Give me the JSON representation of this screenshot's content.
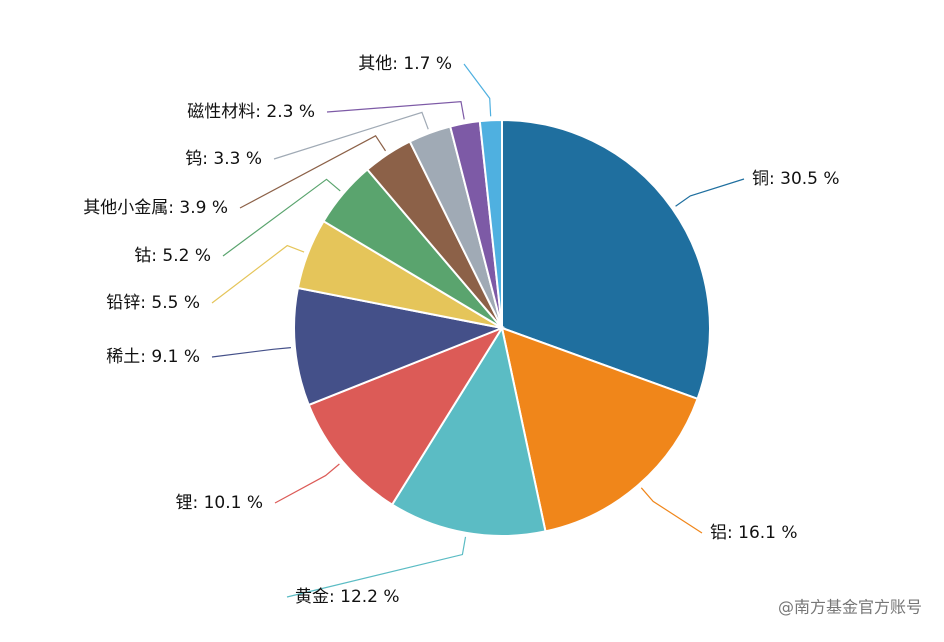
{
  "chart_data": {
    "type": "pie",
    "values": [
      30.5,
      16.1,
      12.2,
      10.1,
      9.1,
      5.5,
      5.2,
      3.9,
      3.3,
      2.3,
      1.7
    ],
    "value_labels": [
      "铜: 30.5 %",
      "铝: 16.1 %",
      "黄金: 12.2 %",
      "锂: 10.1 %",
      "稀土: 9.1 %",
      "铅锌: 5.5 %",
      "钴: 5.2 %",
      "其他小金属: 3.9 %",
      "钨: 3.3 %",
      "磁性材料: 2.3 %",
      "其他: 1.7 %"
    ],
    "colors": [
      "#1f6f9f",
      "#f0861a",
      "#5bbcc4",
      "#dc5b57",
      "#445089",
      "#e5c55a",
      "#5aa46e",
      "#8c6148",
      "#a0aab5",
      "#7d5aa6",
      "#4fb0e0"
    ]
  },
  "watermark": "@南方基金官方账号"
}
